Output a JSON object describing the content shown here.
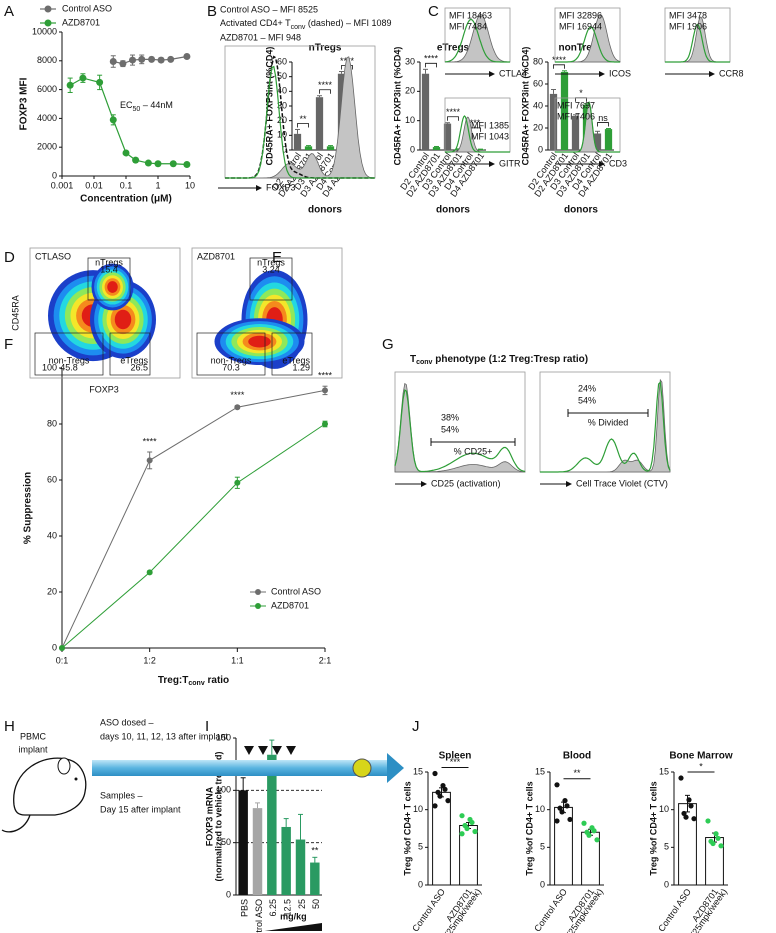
{
  "panel_labels": [
    "A",
    "B",
    "C",
    "D",
    "E",
    "F",
    "G",
    "H",
    "I",
    "J"
  ],
  "chart_data": [
    {
      "type": "line",
      "log_x": true,
      "ylabel": "FOXP3 MFI",
      "xlabel": "Concentration (μM)",
      "xlim": [
        0.001,
        10
      ],
      "xticks": [
        0.001,
        0.01,
        0.1,
        1,
        10
      ],
      "ylim": [
        0,
        10000
      ],
      "yticks": [
        0,
        2000,
        4000,
        6000,
        8000,
        10000
      ],
      "annotation": {
        "main": "EC",
        "sub": "50",
        "rest": " – 44nM"
      },
      "series": [
        {
          "name": "Control ASO",
          "color": "#6d6d6d",
          "x": [
            0.04,
            0.08,
            0.16,
            0.31,
            0.63,
            1.25,
            2.5,
            8
          ],
          "values": [
            7950,
            7800,
            8050,
            8100,
            8100,
            8050,
            8100,
            8300
          ],
          "errors": [
            400,
            200,
            350,
            300,
            150,
            150,
            100,
            100
          ]
        },
        {
          "name": "AZD8701",
          "color": "#2e9e37",
          "x": [
            0.0018,
            0.0045,
            0.015,
            0.04,
            0.1,
            0.2,
            0.5,
            1,
            3,
            8
          ],
          "values": [
            6300,
            6800,
            6500,
            3900,
            1600,
            1100,
            900,
            850,
            850,
            800
          ],
          "errors": [
            500,
            300,
            500,
            350,
            100,
            80,
            60,
            50,
            50,
            40
          ]
        }
      ]
    },
    {
      "type": "bar",
      "title": "nTregs",
      "ylabel": "CD45RA+ FOXP3int (%CD4)",
      "xlabel": "donors",
      "categories": [
        "D2 Control",
        "D2 AZD8701",
        "D3 Control",
        "D3 AZD8701",
        "D4 Control",
        "D4 AZD8701"
      ],
      "values": [
        11,
        2.5,
        36,
        2.5,
        52,
        2.5
      ],
      "errors": [
        3,
        0.5,
        1,
        0.5,
        1.5,
        0.5
      ],
      "colors": [
        "#666666",
        "#2e9e37",
        "#666666",
        "#2e9e37",
        "#666666",
        "#2e9e37"
      ],
      "ylim": [
        0,
        60
      ],
      "yticks": [
        0,
        10,
        20,
        30,
        40,
        50,
        60
      ],
      "significance": [
        "**",
        "****",
        "****"
      ]
    },
    {
      "type": "bar",
      "title": "eTregs",
      "ylabel": "CD45RA+ FOXP3int (%CD4)",
      "xlabel": "donors",
      "categories": [
        "D2 Control",
        "D2 AZD8701",
        "D3 Control",
        "D3 AZD8701",
        "D4 Control",
        "D4 AZD8701"
      ],
      "values": [
        26,
        1,
        9,
        0.3,
        5,
        0.2
      ],
      "errors": [
        1.5,
        0.2,
        0.3,
        0.1,
        0.5,
        0.1
      ],
      "colors": [
        "#666666",
        "#2e9e37",
        "#666666",
        "#2e9e37",
        "#666666",
        "#2e9e37"
      ],
      "ylim": [
        0,
        30
      ],
      "yticks": [
        0,
        10,
        20,
        30
      ],
      "significance": [
        "****",
        "****",
        "***"
      ]
    },
    {
      "type": "bar",
      "title": "nonTregs",
      "ylabel": "CD45RA+ FOXP3int (%CD4)",
      "xlabel": "donors",
      "categories": [
        "D2 Control",
        "D2 AZD8701",
        "D3 Control",
        "D3 AZD8701",
        "D4 Control",
        "D4 AZD8701"
      ],
      "values": [
        51,
        71,
        31,
        41,
        15,
        19
      ],
      "errors": [
        4,
        1,
        1,
        1,
        2,
        0.5
      ],
      "colors": [
        "#666666",
        "#2e9e37",
        "#666666",
        "#2e9e37",
        "#666666",
        "#2e9e37"
      ],
      "ylim": [
        0,
        80
      ],
      "yticks": [
        0,
        20,
        40,
        60,
        80
      ],
      "significance": [
        "****",
        "*",
        "ns"
      ]
    },
    {
      "type": "line_cat",
      "ylabel": "% Suppression",
      "xlabel": {
        "a": "Treg:T",
        "b": "conv",
        "c": " ratio"
      },
      "categories": [
        "0:1",
        "1:2",
        "1:1",
        "2:1"
      ],
      "ylim": [
        0,
        100
      ],
      "yticks": [
        0,
        20,
        40,
        60,
        80,
        100
      ],
      "significance": [
        "****",
        "****",
        "****"
      ],
      "series": [
        {
          "name": "Control ASO",
          "color": "#6d6d6d",
          "values": [
            0,
            67,
            86,
            92
          ],
          "errors": [
            0,
            3,
            0.5,
            1.5
          ]
        },
        {
          "name": "AZD8701",
          "color": "#2e9e37",
          "values": [
            0,
            27,
            59,
            80
          ],
          "errors": [
            0,
            0.5,
            2,
            1
          ]
        }
      ]
    },
    {
      "type": "bar",
      "ylabel": [
        "FOXP3 mRNA",
        "(normalized to vehicle treated)"
      ],
      "xlabel": "mg/kg",
      "categories": [
        "PBS",
        "Control ASO",
        "6.25",
        "12.5",
        "25",
        "50"
      ],
      "values": [
        100,
        83,
        134,
        65,
        53,
        31
      ],
      "errors": [
        12,
        5,
        14,
        8,
        24,
        5
      ],
      "colors": [
        "#111111",
        "#a6a6a6",
        "#2a9a62",
        "#2a9a62",
        "#2a9a62",
        "#2a9a62"
      ],
      "ylim": [
        0,
        150
      ],
      "yticks": [
        0,
        50,
        100,
        150
      ],
      "reference_lines": [
        50,
        100
      ],
      "significance": "**"
    },
    {
      "type": "dot_bar",
      "title": "Spleen",
      "ylabel": "Treg %of CD4+ T cells",
      "categories": [
        "Control ASO",
        "AZD8701"
      ],
      "category_note": "(25mpk/week)",
      "values": [
        12.3,
        7.9
      ],
      "errors": [
        0.6,
        0.4
      ],
      "points": [
        [
          14.8,
          13.2,
          12.7,
          12.3,
          11.8,
          11.2,
          10.5
        ],
        [
          9.2,
          8.7,
          8.3,
          7.9,
          7.5,
          7.1,
          6.8
        ]
      ],
      "colors": [
        "#111111",
        "#2ecc55"
      ],
      "ylim": [
        0,
        15
      ],
      "yticks": [
        0,
        5,
        10,
        15
      ],
      "significance": "***"
    },
    {
      "type": "dot_bar",
      "title": "Blood",
      "ylabel": "Treg %of CD4+ T cells",
      "categories": [
        "Control ASO",
        "AZD8701"
      ],
      "category_note": "(25mpk/week)",
      "values": [
        10.3,
        7.0
      ],
      "errors": [
        0.7,
        0.4
      ],
      "points": [
        [
          13.3,
          11.2,
          10.5,
          10.2,
          9.7,
          8.7,
          8.5
        ],
        [
          8.2,
          7.6,
          7.2,
          7.0,
          6.6,
          6.0
        ]
      ],
      "colors": [
        "#111111",
        "#2ecc55"
      ],
      "ylim": [
        0,
        15
      ],
      "yticks": [
        0,
        5,
        10,
        15
      ],
      "significance": "**"
    },
    {
      "type": "dot_bar",
      "title": "Bone Marrow",
      "ylabel": "Treg %of CD4+ T cells",
      "categories": [
        "Control ASO",
        "AZD8701"
      ],
      "category_note": "(25mpk/week)",
      "values": [
        10.8,
        6.3
      ],
      "errors": [
        1.1,
        0.6
      ],
      "points": [
        [
          14.2,
          11.3,
          10.5,
          9.5,
          9.0,
          8.8
        ],
        [
          8.5,
          6.8,
          6.2,
          5.8,
          5.5,
          5.2
        ]
      ],
      "colors": [
        "#111111",
        "#2ecc55"
      ],
      "ylim": [
        0,
        15
      ],
      "yticks": [
        0,
        5,
        10,
        15
      ],
      "significance": "*"
    }
  ],
  "flow_B": {
    "line1": "Control ASO – MFI 8525",
    "line2a": "Activated CD4+ T",
    "line2b": "conv",
    "line2c": " (dashed) – MFI 1089",
    "line3": "AZD8701 – MFI 948",
    "axis": "FOXP3"
  },
  "flow_C": [
    {
      "gray": "MFI 18463",
      "green": "MFI 7484",
      "axis": "CTLA4"
    },
    {
      "gray": "MFI 32896",
      "green": "MFI 16944",
      "axis": "ICOS"
    },
    {
      "gray": "MFI 3478",
      "green": "MFI 1906",
      "axis": "CCR8"
    },
    {
      "gray": "MFI 1385",
      "green": "MFI 1043",
      "axis": "GITR"
    },
    {
      "gray": "MFI 7697",
      "green": "MFI 7406",
      "axis": "CD3"
    }
  ],
  "flow_D": {
    "ylabel": "CD45RA",
    "xlabel": "FOXP3",
    "plots": [
      {
        "title": "CTLASO",
        "gates": [
          {
            "name": "nTregs",
            "value": 15.4
          },
          {
            "name": "non-Tregs",
            "value": 45.8
          },
          {
            "name": "eTregs",
            "value": 26.5
          }
        ]
      },
      {
        "title": "AZD8701",
        "gates": [
          {
            "name": "nTregs",
            "value": 3.24
          },
          {
            "name": "non-Tregs",
            "value": 70.3
          },
          {
            "name": "eTregs",
            "value": 1.29
          }
        ]
      }
    ]
  },
  "flow_G": {
    "title_a": "T",
    "title_b": "conv",
    "title_c": " phenotype (1:2 Treg:Tresp ratio)",
    "plots": [
      {
        "gray": "38%",
        "green": "54%",
        "gate": "% CD25+",
        "axis": "CD25 (activation)"
      },
      {
        "gray": "24%",
        "green": "54%",
        "gate": "% Divided",
        "axis": "Cell Trace Violet (CTV)"
      }
    ]
  },
  "diagram_H": {
    "implant": [
      "PBMC",
      "implant"
    ],
    "dosed": [
      "ASO dosed –",
      "days 10, 11, 12, 13 after implant"
    ],
    "samples": [
      "Samples –",
      "Day 15 after implant"
    ]
  }
}
